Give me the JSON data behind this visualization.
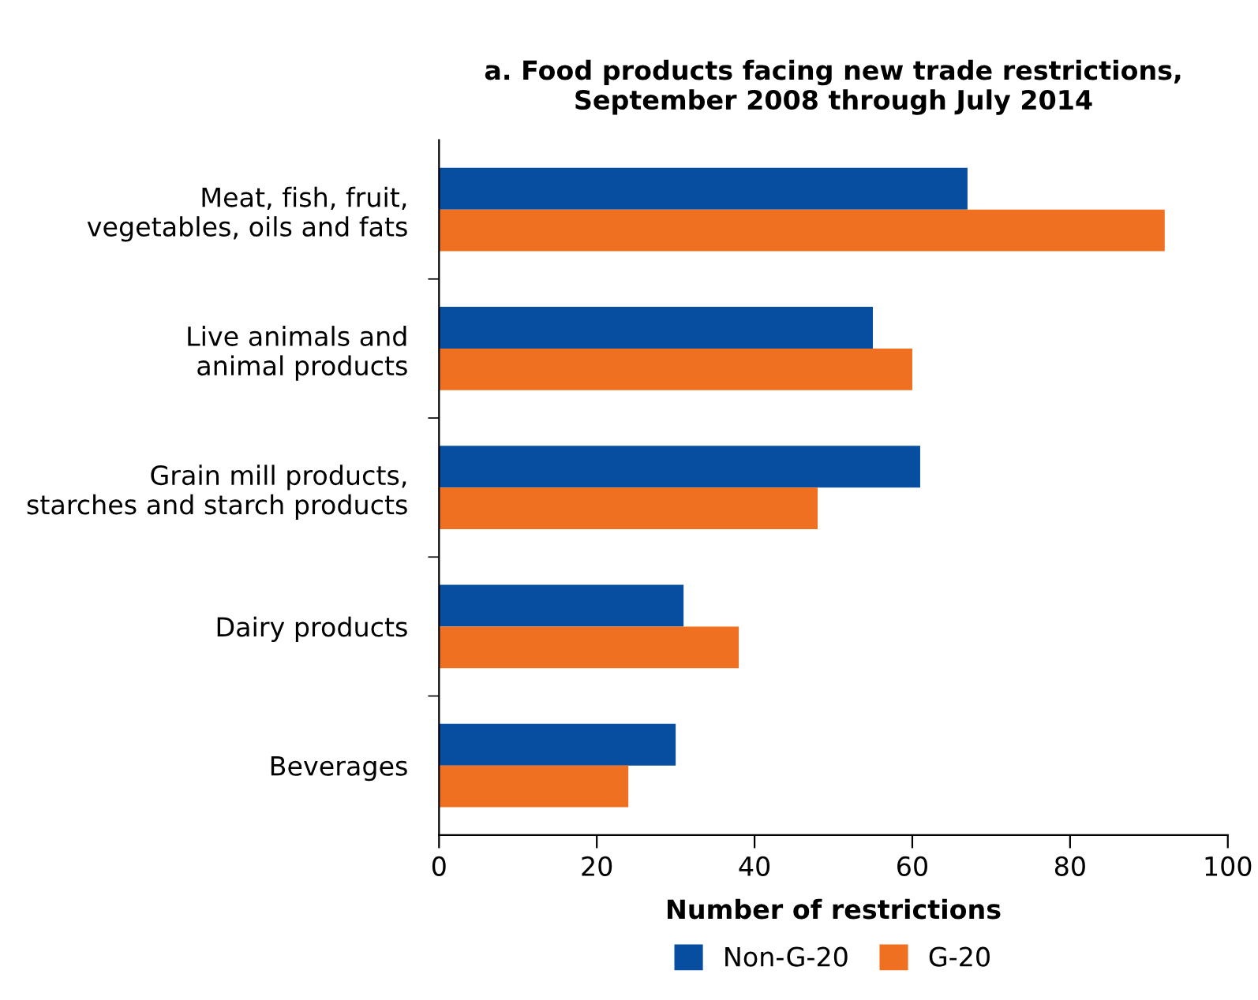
{
  "chart_data": {
    "type": "bar",
    "orientation": "horizontal",
    "title": "a. Food products facing new trade restrictions,\nSeptember 2008 through July 2014",
    "categories": [
      "Meat, fish, fruit,\nvegetables, oils and fats",
      "Live animals and\nanimal products",
      "Grain mill products,\nstarches and starch products",
      "Dairy products",
      "Beverages"
    ],
    "series": [
      {
        "name": "Non-G-20",
        "color": "#074ea1",
        "values": [
          67,
          55,
          61,
          31,
          30
        ]
      },
      {
        "name": "G-20",
        "color": "#f07021",
        "values": [
          92,
          60,
          48,
          38,
          24
        ]
      }
    ],
    "xlabel": "Number of restrictions",
    "xlim": [
      0,
      100
    ],
    "xticks": [
      0,
      20,
      40,
      60,
      80,
      100
    ],
    "grid": false,
    "legend": "bottom"
  }
}
